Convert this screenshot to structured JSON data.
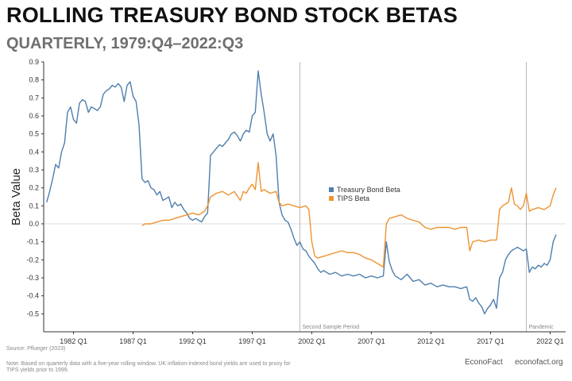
{
  "header": {
    "title": "ROLLING TREASURY BOND STOCK BETAS",
    "subtitle": "QUARTERLY, 1979:Q4–2022:Q3"
  },
  "footer": {
    "source": "Source: Pflueger (2023)",
    "note": "Note: Based on quarterly data with a five-year rolling window. UK inflation-indexed bond yields are used to proxy for TIPS yields prior to 1999.",
    "brand": "EconoFact",
    "site": "econofact.org"
  },
  "colors": {
    "treasury": "#4f7fae",
    "tips": "#ef9330",
    "axis": "#333333",
    "zero_line": "#dddddd",
    "vline": "#bbbbbb"
  },
  "chart_data": {
    "type": "line",
    "title": "ROLLING TREASURY BOND STOCK BETAS",
    "subtitle": "QUARTERLY, 1979:Q4–2022:Q3",
    "xlabel": "",
    "ylabel": "Beta Value",
    "xlim": [
      1979.5,
      2023.3
    ],
    "ylim": [
      -0.6,
      0.9
    ],
    "yticks": [
      -0.5,
      -0.4,
      -0.3,
      -0.2,
      -0.1,
      0.0,
      0.1,
      0.2,
      0.3,
      0.4,
      0.5,
      0.6,
      0.7,
      0.8,
      0.9
    ],
    "xticks": [
      {
        "x": 1982.0,
        "label": "1982 Q1"
      },
      {
        "x": 1987.0,
        "label": "1987 Q1"
      },
      {
        "x": 1992.0,
        "label": "1992 Q1"
      },
      {
        "x": 1997.0,
        "label": "1997 Q1"
      },
      {
        "x": 2002.0,
        "label": "2002 Q1"
      },
      {
        "x": 2007.0,
        "label": "2007 Q1"
      },
      {
        "x": 2012.0,
        "label": "2012 Q1"
      },
      {
        "x": 2017.0,
        "label": "2017 Q1"
      },
      {
        "x": 2022.0,
        "label": "2022 Q1"
      }
    ],
    "grid": false,
    "legend_position": "center-right",
    "vlines": [
      {
        "x": 2001.0,
        "label": "Second Sample Period"
      },
      {
        "x": 2020.0,
        "label": "Pandemic"
      }
    ],
    "series": [
      {
        "name": "Treasury Bond Beta",
        "color": "#4f7fae",
        "points": [
          [
            1979.75,
            0.12
          ],
          [
            1980.0,
            0.18
          ],
          [
            1980.25,
            0.25
          ],
          [
            1980.5,
            0.33
          ],
          [
            1980.75,
            0.31
          ],
          [
            1981.0,
            0.4
          ],
          [
            1981.25,
            0.45
          ],
          [
            1981.5,
            0.62
          ],
          [
            1981.75,
            0.65
          ],
          [
            1982.0,
            0.58
          ],
          [
            1982.25,
            0.56
          ],
          [
            1982.5,
            0.67
          ],
          [
            1982.75,
            0.69
          ],
          [
            1983.0,
            0.68
          ],
          [
            1983.25,
            0.62
          ],
          [
            1983.5,
            0.65
          ],
          [
            1983.75,
            0.64
          ],
          [
            1984.0,
            0.63
          ],
          [
            1984.25,
            0.65
          ],
          [
            1984.5,
            0.72
          ],
          [
            1984.75,
            0.74
          ],
          [
            1985.0,
            0.75
          ],
          [
            1985.25,
            0.77
          ],
          [
            1985.5,
            0.76
          ],
          [
            1985.75,
            0.78
          ],
          [
            1986.0,
            0.76
          ],
          [
            1986.25,
            0.68
          ],
          [
            1986.5,
            0.77
          ],
          [
            1986.75,
            0.79
          ],
          [
            1987.0,
            0.71
          ],
          [
            1987.25,
            0.68
          ],
          [
            1987.5,
            0.55
          ],
          [
            1987.75,
            0.25
          ],
          [
            1988.0,
            0.23
          ],
          [
            1988.25,
            0.24
          ],
          [
            1988.5,
            0.2
          ],
          [
            1988.75,
            0.19
          ],
          [
            1989.0,
            0.16
          ],
          [
            1989.25,
            0.18
          ],
          [
            1989.5,
            0.13
          ],
          [
            1989.75,
            0.14
          ],
          [
            1990.0,
            0.15
          ],
          [
            1990.25,
            0.09
          ],
          [
            1990.5,
            0.12
          ],
          [
            1990.75,
            0.1
          ],
          [
            1991.0,
            0.11
          ],
          [
            1991.25,
            0.08
          ],
          [
            1991.5,
            0.06
          ],
          [
            1991.75,
            0.03
          ],
          [
            1992.0,
            0.02
          ],
          [
            1992.25,
            0.03
          ],
          [
            1992.5,
            0.02
          ],
          [
            1992.75,
            0.01
          ],
          [
            1993.0,
            0.04
          ],
          [
            1993.25,
            0.06
          ],
          [
            1993.5,
            0.38
          ],
          [
            1993.75,
            0.4
          ],
          [
            1994.0,
            0.42
          ],
          [
            1994.25,
            0.44
          ],
          [
            1994.5,
            0.43
          ],
          [
            1994.75,
            0.45
          ],
          [
            1995.0,
            0.47
          ],
          [
            1995.25,
            0.5
          ],
          [
            1995.5,
            0.51
          ],
          [
            1995.75,
            0.49
          ],
          [
            1996.0,
            0.46
          ],
          [
            1996.25,
            0.5
          ],
          [
            1996.5,
            0.52
          ],
          [
            1996.75,
            0.51
          ],
          [
            1997.0,
            0.6
          ],
          [
            1997.25,
            0.62
          ],
          [
            1997.5,
            0.85
          ],
          [
            1997.75,
            0.72
          ],
          [
            1998.0,
            0.62
          ],
          [
            1998.25,
            0.5
          ],
          [
            1998.5,
            0.46
          ],
          [
            1998.75,
            0.5
          ],
          [
            1999.0,
            0.38
          ],
          [
            1999.25,
            0.12
          ],
          [
            1999.5,
            0.05
          ],
          [
            1999.75,
            0.02
          ],
          [
            2000.0,
            0.01
          ],
          [
            2000.25,
            -0.03
          ],
          [
            2000.5,
            -0.08
          ],
          [
            2000.75,
            -0.12
          ],
          [
            2001.0,
            -0.1
          ],
          [
            2001.25,
            -0.14
          ],
          [
            2001.5,
            -0.15
          ],
          [
            2001.75,
            -0.18
          ],
          [
            2002.0,
            -0.2
          ],
          [
            2002.25,
            -0.22
          ],
          [
            2002.5,
            -0.25
          ],
          [
            2002.75,
            -0.27
          ],
          [
            2003.0,
            -0.26
          ],
          [
            2003.5,
            -0.28
          ],
          [
            2004.0,
            -0.27
          ],
          [
            2004.5,
            -0.29
          ],
          [
            2005.0,
            -0.28
          ],
          [
            2005.5,
            -0.29
          ],
          [
            2006.0,
            -0.28
          ],
          [
            2006.5,
            -0.3
          ],
          [
            2007.0,
            -0.29
          ],
          [
            2007.5,
            -0.3
          ],
          [
            2008.0,
            -0.29
          ],
          [
            2008.25,
            -0.1
          ],
          [
            2008.5,
            -0.21
          ],
          [
            2008.75,
            -0.26
          ],
          [
            2009.0,
            -0.29
          ],
          [
            2009.5,
            -0.31
          ],
          [
            2010.0,
            -0.28
          ],
          [
            2010.5,
            -0.32
          ],
          [
            2011.0,
            -0.31
          ],
          [
            2011.5,
            -0.34
          ],
          [
            2012.0,
            -0.33
          ],
          [
            2012.5,
            -0.35
          ],
          [
            2013.0,
            -0.34
          ],
          [
            2013.5,
            -0.35
          ],
          [
            2014.0,
            -0.35
          ],
          [
            2014.5,
            -0.36
          ],
          [
            2015.0,
            -0.35
          ],
          [
            2015.25,
            -0.42
          ],
          [
            2015.5,
            -0.43
          ],
          [
            2015.75,
            -0.41
          ],
          [
            2016.0,
            -0.44
          ],
          [
            2016.25,
            -0.46
          ],
          [
            2016.5,
            -0.5
          ],
          [
            2016.75,
            -0.47
          ],
          [
            2017.0,
            -0.45
          ],
          [
            2017.25,
            -0.42
          ],
          [
            2017.5,
            -0.47
          ],
          [
            2017.75,
            -0.3
          ],
          [
            2018.0,
            -0.27
          ],
          [
            2018.25,
            -0.2
          ],
          [
            2018.5,
            -0.17
          ],
          [
            2018.75,
            -0.15
          ],
          [
            2019.0,
            -0.14
          ],
          [
            2019.25,
            -0.13
          ],
          [
            2019.5,
            -0.14
          ],
          [
            2019.75,
            -0.15
          ],
          [
            2020.0,
            -0.14
          ],
          [
            2020.25,
            -0.27
          ],
          [
            2020.5,
            -0.24
          ],
          [
            2020.75,
            -0.25
          ],
          [
            2021.0,
            -0.23
          ],
          [
            2021.25,
            -0.24
          ],
          [
            2021.5,
            -0.22
          ],
          [
            2021.75,
            -0.23
          ],
          [
            2022.0,
            -0.2
          ],
          [
            2022.25,
            -0.1
          ],
          [
            2022.5,
            -0.06
          ]
        ]
      },
      {
        "name": "TIPS Beta",
        "color": "#ef9330",
        "points": [
          [
            1987.75,
            -0.01
          ],
          [
            1988.0,
            0.0
          ],
          [
            1988.5,
            0.0
          ],
          [
            1989.0,
            0.01
          ],
          [
            1989.5,
            0.02
          ],
          [
            1990.0,
            0.02
          ],
          [
            1990.5,
            0.03
          ],
          [
            1991.0,
            0.04
          ],
          [
            1991.5,
            0.05
          ],
          [
            1992.0,
            0.06
          ],
          [
            1992.5,
            0.05
          ],
          [
            1993.0,
            0.07
          ],
          [
            1993.25,
            0.1
          ],
          [
            1993.5,
            0.15
          ],
          [
            1994.0,
            0.17
          ],
          [
            1994.5,
            0.18
          ],
          [
            1995.0,
            0.16
          ],
          [
            1995.5,
            0.18
          ],
          [
            1996.0,
            0.13
          ],
          [
            1996.25,
            0.18
          ],
          [
            1996.5,
            0.17
          ],
          [
            1996.75,
            0.2
          ],
          [
            1997.0,
            0.22
          ],
          [
            1997.25,
            0.19
          ],
          [
            1997.5,
            0.34
          ],
          [
            1997.75,
            0.18
          ],
          [
            1998.0,
            0.19
          ],
          [
            1998.5,
            0.17
          ],
          [
            1999.0,
            0.18
          ],
          [
            1999.25,
            0.12
          ],
          [
            1999.5,
            0.1
          ],
          [
            2000.0,
            0.11
          ],
          [
            2000.5,
            0.1
          ],
          [
            2001.0,
            0.09
          ],
          [
            2001.5,
            0.1
          ],
          [
            2001.75,
            0.08
          ],
          [
            2002.0,
            -0.1
          ],
          [
            2002.25,
            -0.18
          ],
          [
            2002.5,
            -0.19
          ],
          [
            2003.0,
            -0.18
          ],
          [
            2003.5,
            -0.17
          ],
          [
            2004.0,
            -0.16
          ],
          [
            2004.5,
            -0.15
          ],
          [
            2005.0,
            -0.16
          ],
          [
            2005.5,
            -0.16
          ],
          [
            2006.0,
            -0.17
          ],
          [
            2006.5,
            -0.19
          ],
          [
            2007.0,
            -0.2
          ],
          [
            2007.5,
            -0.22
          ],
          [
            2008.0,
            -0.24
          ],
          [
            2008.25,
            0.0
          ],
          [
            2008.5,
            0.03
          ],
          [
            2009.0,
            0.04
          ],
          [
            2009.5,
            0.05
          ],
          [
            2010.0,
            0.03
          ],
          [
            2010.5,
            0.02
          ],
          [
            2011.0,
            0.01
          ],
          [
            2011.5,
            -0.02
          ],
          [
            2012.0,
            -0.03
          ],
          [
            2012.5,
            -0.02
          ],
          [
            2013.0,
            -0.02
          ],
          [
            2013.5,
            -0.02
          ],
          [
            2014.0,
            -0.03
          ],
          [
            2014.5,
            -0.02
          ],
          [
            2015.0,
            -0.02
          ],
          [
            2015.25,
            -0.15
          ],
          [
            2015.5,
            -0.1
          ],
          [
            2016.0,
            -0.09
          ],
          [
            2016.5,
            -0.1
          ],
          [
            2017.0,
            -0.09
          ],
          [
            2017.5,
            -0.09
          ],
          [
            2017.75,
            0.08
          ],
          [
            2018.0,
            0.1
          ],
          [
            2018.5,
            0.12
          ],
          [
            2018.75,
            0.2
          ],
          [
            2019.0,
            0.11
          ],
          [
            2019.25,
            0.1
          ],
          [
            2019.5,
            0.08
          ],
          [
            2019.75,
            0.1
          ],
          [
            2020.0,
            0.17
          ],
          [
            2020.25,
            0.07
          ],
          [
            2020.5,
            0.08
          ],
          [
            2021.0,
            0.09
          ],
          [
            2021.5,
            0.08
          ],
          [
            2022.0,
            0.1
          ],
          [
            2022.25,
            0.16
          ],
          [
            2022.5,
            0.2
          ]
        ]
      }
    ]
  }
}
